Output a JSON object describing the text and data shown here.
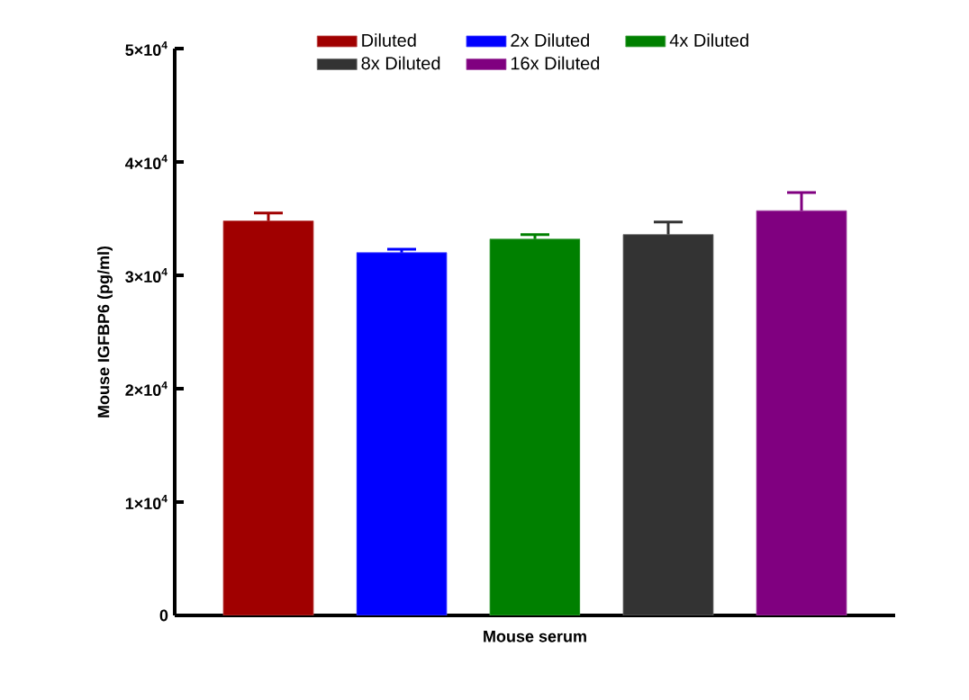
{
  "chart_data": {
    "type": "bar",
    "ylabel": "Mouse IGFBP6 (pg/ml)",
    "categories": [
      "Mouse serum"
    ],
    "series": [
      {
        "name": "Diluted",
        "color": "#a00000",
        "values": [
          34800
        ],
        "errors": [
          700
        ]
      },
      {
        "name": "2x Diluted",
        "color": "#0000ff",
        "values": [
          32000
        ],
        "errors": [
          300
        ]
      },
      {
        "name": "4x Diluted",
        "color": "#008000",
        "values": [
          33200
        ],
        "errors": [
          400
        ]
      },
      {
        "name": "8x Diluted",
        "color": "#333333",
        "values": [
          33600
        ],
        "errors": [
          1100
        ]
      },
      {
        "name": "16x Diluted",
        "color": "#800080",
        "values": [
          35700
        ],
        "errors": [
          1600
        ]
      }
    ],
    "ylim": [
      0,
      50000
    ],
    "yticks": [
      0,
      {
        "value": 10000,
        "label": "1×10$^{4}$"
      },
      {
        "value": 20000,
        "label": "2×10$^{4}$"
      },
      {
        "value": 30000,
        "label": "3×10$^{4}$"
      },
      {
        "value": 40000,
        "label": "4×10$^{4}$"
      },
      {
        "value": 50000,
        "label": "5×10$^{4}$"
      }
    ],
    "legend": "top",
    "grid": false
  }
}
